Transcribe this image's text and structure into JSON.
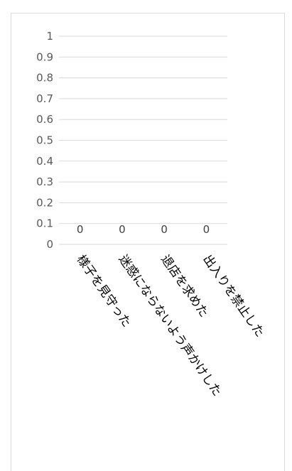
{
  "chart_data": {
    "type": "bar",
    "title": "",
    "xlabel": "",
    "ylabel": "",
    "categories": [
      "様子を見守った",
      "迷惑にならないよう声かけした",
      "退店を求めた",
      "出入りを禁止した"
    ],
    "values": [
      0,
      0,
      0,
      0
    ],
    "data_labels": [
      "0",
      "0",
      "0",
      "0"
    ],
    "ylim": [
      0,
      1
    ],
    "yticks": [
      "0",
      "0.1",
      "0.2",
      "0.3",
      "0.4",
      "0.5",
      "0.6",
      "0.7",
      "0.8",
      "0.9",
      "1"
    ],
    "grid": true,
    "legend": "none",
    "colors": {
      "gridline": "#d9d9d9",
      "tick_text": "#595959",
      "label_text": "#404040",
      "category_text": "#000000",
      "border": "#d9d9d9"
    }
  }
}
